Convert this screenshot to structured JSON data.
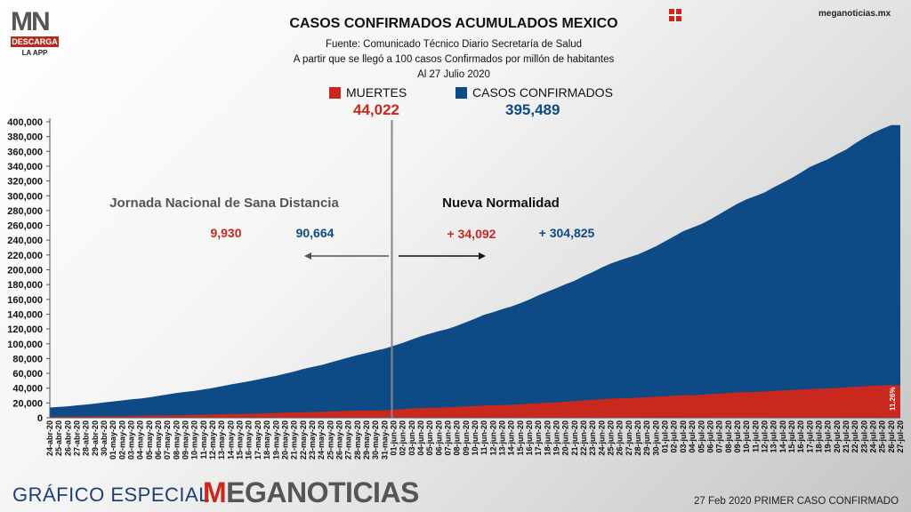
{
  "header": {
    "app_logo_text": "MN",
    "app_logo_badge": "DESCARGA",
    "app_logo_sub": "LA APP",
    "site_url": "meganoticias.mx"
  },
  "titles": {
    "title": "CASOS CONFIRMADOS ACUMULADOS MEXICO",
    "source": "Fuente: Comunicado Técnico Diario Secretaría de Salud",
    "note": "A partir que se llegó a 100 casos Confirmados por millón de habitantes",
    "date": "Al 27 Julio 2020"
  },
  "legend": {
    "deaths_label": "MUERTES",
    "deaths_value": "44,022",
    "cases_label": "CASOS CONFIRMADOS",
    "cases_value": "395,489"
  },
  "annotations": {
    "period1": "Jornada Nacional de Sana Distancia",
    "period2": "Nueva Normalidad",
    "p1_deaths": "9,930",
    "p1_cases": "90,664",
    "p2_deaths": "+ 34,092",
    "p2_cases": "+ 304,825",
    "pct": "11.26%"
  },
  "footer": {
    "special": "GRÁFICO ESPECIAL",
    "brand": "MEGANOTICIAS",
    "first_case": "27 Feb 2020 PRIMER CASO CONFIRMADO"
  },
  "colors": {
    "cases": "#0d4a86",
    "deaths": "#c8281e",
    "divider": "#888888",
    "p1_text": "#555555",
    "p2_text": "#111111"
  },
  "chart_data": {
    "type": "area",
    "ylim": [
      0,
      400000
    ],
    "yticks": [
      0,
      20000,
      40000,
      60000,
      80000,
      100000,
      120000,
      140000,
      160000,
      180000,
      200000,
      220000,
      240000,
      260000,
      280000,
      300000,
      320000,
      340000,
      360000,
      380000,
      400000
    ],
    "ytick_labels": [
      "0",
      "20,000",
      "40,000",
      "60,000",
      "80,000",
      "100,000",
      "120,000",
      "140,000",
      "160,000",
      "180,000",
      "200,000",
      "220,000",
      "240,000",
      "260,000",
      "280,000",
      "300,000",
      "320,000",
      "340,000",
      "360,000",
      "380,000",
      "400,000"
    ],
    "x": [
      "24-abr-20",
      "25-abr-20",
      "26-abr-20",
      "27-abr-20",
      "28-abr-20",
      "29-abr-20",
      "30-abr-20",
      "01-may-20",
      "02-may-20",
      "03-may-20",
      "04-may-20",
      "05-may-20",
      "06-may-20",
      "07-may-20",
      "08-may-20",
      "09-may-20",
      "10-may-20",
      "11-may-20",
      "12-may-20",
      "13-may-20",
      "14-may-20",
      "15-may-20",
      "16-may-20",
      "17-may-20",
      "18-may-20",
      "19-may-20",
      "20-may-20",
      "21-may-20",
      "22-may-20",
      "23-may-20",
      "24-may-20",
      "25-may-20",
      "26-may-20",
      "27-may-20",
      "28-may-20",
      "29-may-20",
      "30-may-20",
      "31-may-20",
      "01-jun-20",
      "02-jun-20",
      "03-jun-20",
      "04-jun-20",
      "05-jun-20",
      "06-jun-20",
      "07-jun-20",
      "08-jun-20",
      "09-jun-20",
      "10-jun-20",
      "11-jun-20",
      "12-jun-20",
      "13-jun-20",
      "14-jun-20",
      "15-jun-20",
      "16-jun-20",
      "17-jun-20",
      "18-jun-20",
      "19-jun-20",
      "20-jun-20",
      "21-jun-20",
      "22-jun-20",
      "23-jun-20",
      "24-jun-20",
      "25-jun-20",
      "26-jun-20",
      "27-jun-20",
      "28-jun-20",
      "29-jun-20",
      "30-jun-20",
      "01-jul-20",
      "02-jul-20",
      "03-jul-20",
      "04-jul-20",
      "05-jul-20",
      "06-jul-20",
      "07-jul-20",
      "08-jul-20",
      "09-jul-20",
      "10-jul-20",
      "11-jul-20",
      "12-jul-20",
      "13-jul-20",
      "14-jul-20",
      "15-jul-20",
      "16-jul-20",
      "17-jul-20",
      "18-jul-20",
      "19-jul-20",
      "20-jul-20",
      "21-jul-20",
      "22-jul-20",
      "23-jul-20",
      "24-jul-20",
      "25-jul-20",
      "26-jul-20",
      "27-jul-20"
    ],
    "series": [
      {
        "name": "CASOS CONFIRMADOS",
        "values": [
          13842,
          14677,
          15529,
          16752,
          17799,
          19224,
          20739,
          22088,
          23471,
          24905,
          26025,
          27634,
          29616,
          31522,
          33460,
          35022,
          36327,
          38324,
          40186,
          42595,
          45032,
          47144,
          49219,
          51633,
          54346,
          56594,
          59567,
          62527,
          65856,
          68620,
          71105,
          74560,
          78023,
          81400,
          84627,
          87512,
          90664,
          93435,
          97326,
          101238,
          105680,
          110026,
          113619,
          117103,
          120102,
          124301,
          129184,
          133974,
          139196,
          142690,
          146837,
          150264,
          154863,
          159793,
          165455,
          170485,
          175202,
          180545,
          185122,
          191410,
          196847,
          202951,
          208392,
          212802,
          216852,
          220657,
          226089,
          231770,
          238511,
          245251,
          252165,
          256848,
          261750,
          268008,
          275003,
          282283,
          289174,
          295268,
          299750,
          304435,
          311486,
          317635,
          324041,
          331298,
          338913,
          344224,
          349396,
          356255,
          362274,
          370712,
          378285,
          385036,
          390516,
          395489,
          395489
        ]
      },
      {
        "name": "MUERTES",
        "values": [
          1351,
          1434,
          1569,
          1732,
          1859,
          1972,
          2061,
          2154,
          2271,
          2507,
          2704,
          2961,
          3160,
          3353,
          3465,
          3573,
          3926,
          4220,
          4477,
          4767,
          5045,
          5177,
          5332,
          5666,
          6090,
          6510,
          6989,
          7179,
          7394,
          7633,
          8134,
          8597,
          9044,
          9415,
          9779,
          9930,
          9930,
          10167,
          10637,
          11729,
          12545,
          13170,
          13511,
          13699,
          14053,
          14649,
          15357,
          15944,
          16448,
          16872,
          17141,
          17580,
          18310,
          19080,
          19747,
          20394,
          20781,
          21825,
          22584,
          23377,
          24324,
          25060,
          25779,
          26381,
          26648,
          27121,
          27769,
          28510,
          29189,
          29843,
          30366,
          30639,
          31119,
          32014,
          32796,
          33526,
          34191,
          34730,
          35006,
          35491,
          36327,
          36906,
          37574,
          38310,
          38888,
          39184,
          39485,
          40400,
          41190,
          41908,
          42645,
          43374,
          43680,
          44022,
          44022
        ]
      }
    ],
    "divider_at": "01-jun-20"
  }
}
